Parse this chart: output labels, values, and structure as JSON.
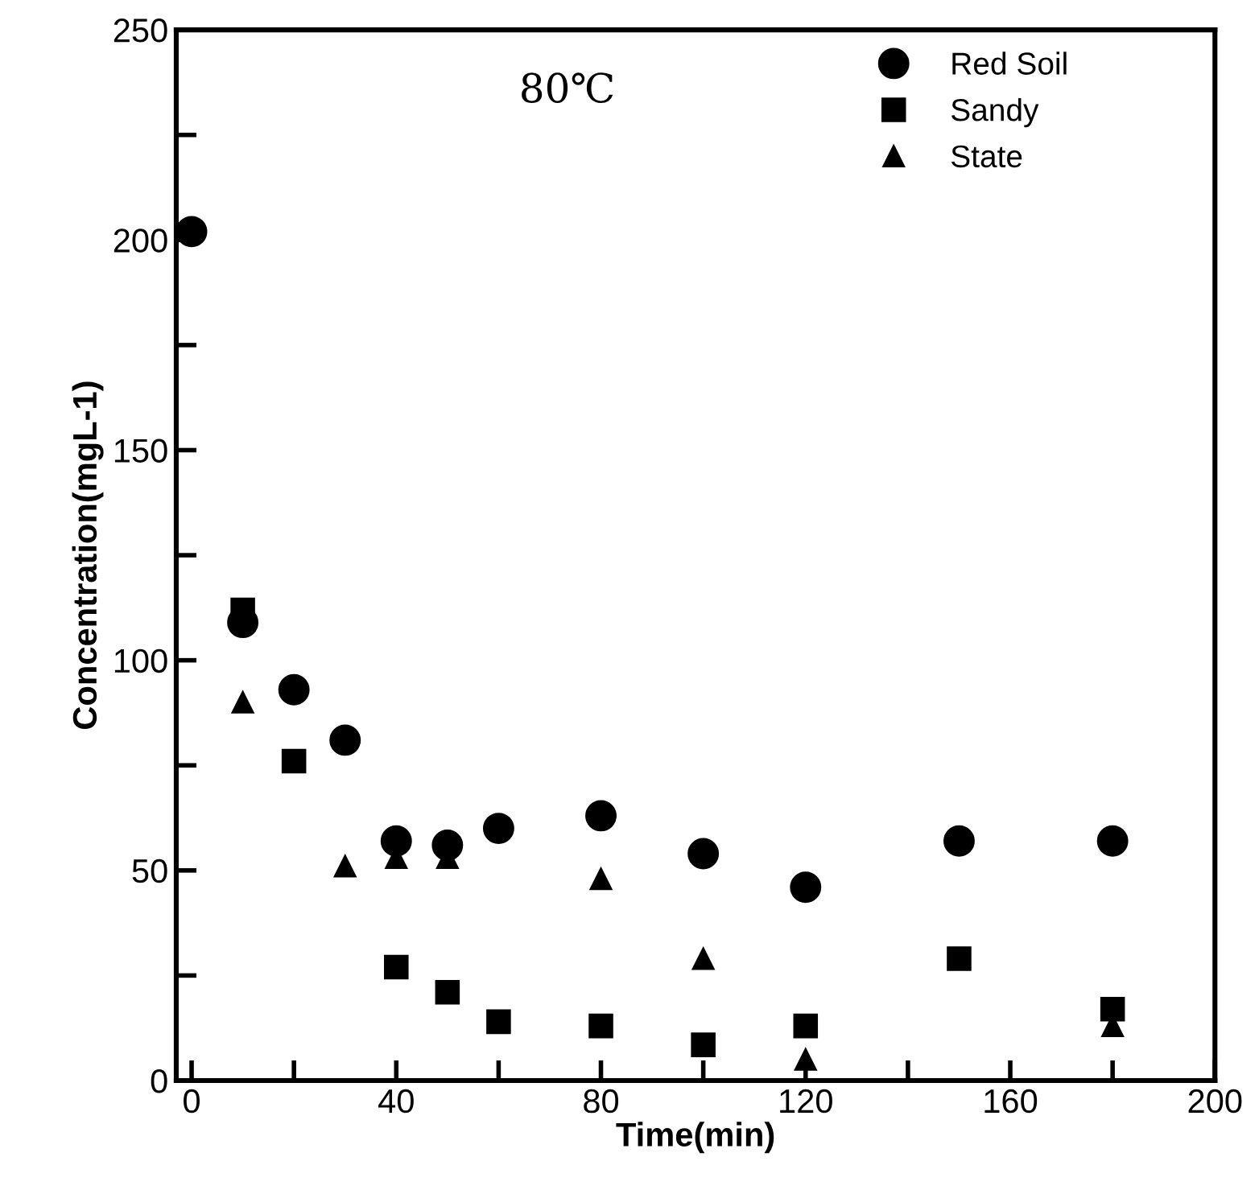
{
  "chart_data": {
    "type": "scatter",
    "xlabel": "Time(min)",
    "ylabel": "Concentration(mgL-1)",
    "annotations": [
      "80℃"
    ],
    "xlim": [
      -3,
      200
    ],
    "ylim": [
      0,
      250
    ],
    "xticks": [
      0,
      {
        "value": 20,
        "label": null
      },
      40,
      {
        "value": 60,
        "label": null
      },
      80,
      {
        "value": 100,
        "label": null
      },
      120,
      {
        "value": 140,
        "label": null
      },
      160,
      {
        "value": 180,
        "label": null
      },
      200
    ],
    "yticks": [
      0,
      {
        "value": 25,
        "label": null
      },
      50,
      {
        "value": 75,
        "label": null
      },
      100,
      {
        "value": 125,
        "label": null
      },
      150,
      {
        "value": 175,
        "label": null
      },
      200,
      {
        "value": 225,
        "label": null
      },
      250
    ],
    "grid": false,
    "legend": "top right",
    "series": [
      {
        "name": "Red Soil",
        "color": "#000000",
        "marker": "circle",
        "x": [
          0,
          10,
          20,
          30,
          40,
          50,
          60,
          80,
          100,
          120,
          150,
          180
        ],
        "values": [
          202,
          109,
          93,
          81,
          57,
          56,
          60,
          63,
          54,
          46,
          57,
          57
        ]
      },
      {
        "name": "Sandy",
        "color": "#000000",
        "marker": "square",
        "x": [
          10,
          20,
          40,
          50,
          60,
          80,
          100,
          120,
          150,
          180
        ],
        "values": [
          112,
          76,
          27,
          21,
          14,
          13,
          8.5,
          13,
          29,
          17
        ]
      },
      {
        "name": "State",
        "color": "#000000",
        "marker": "triangle",
        "x": [
          10,
          30,
          40,
          50,
          80,
          100,
          120,
          180
        ],
        "values": [
          90,
          51,
          53,
          53,
          48,
          29,
          5,
          13
        ]
      }
    ]
  }
}
